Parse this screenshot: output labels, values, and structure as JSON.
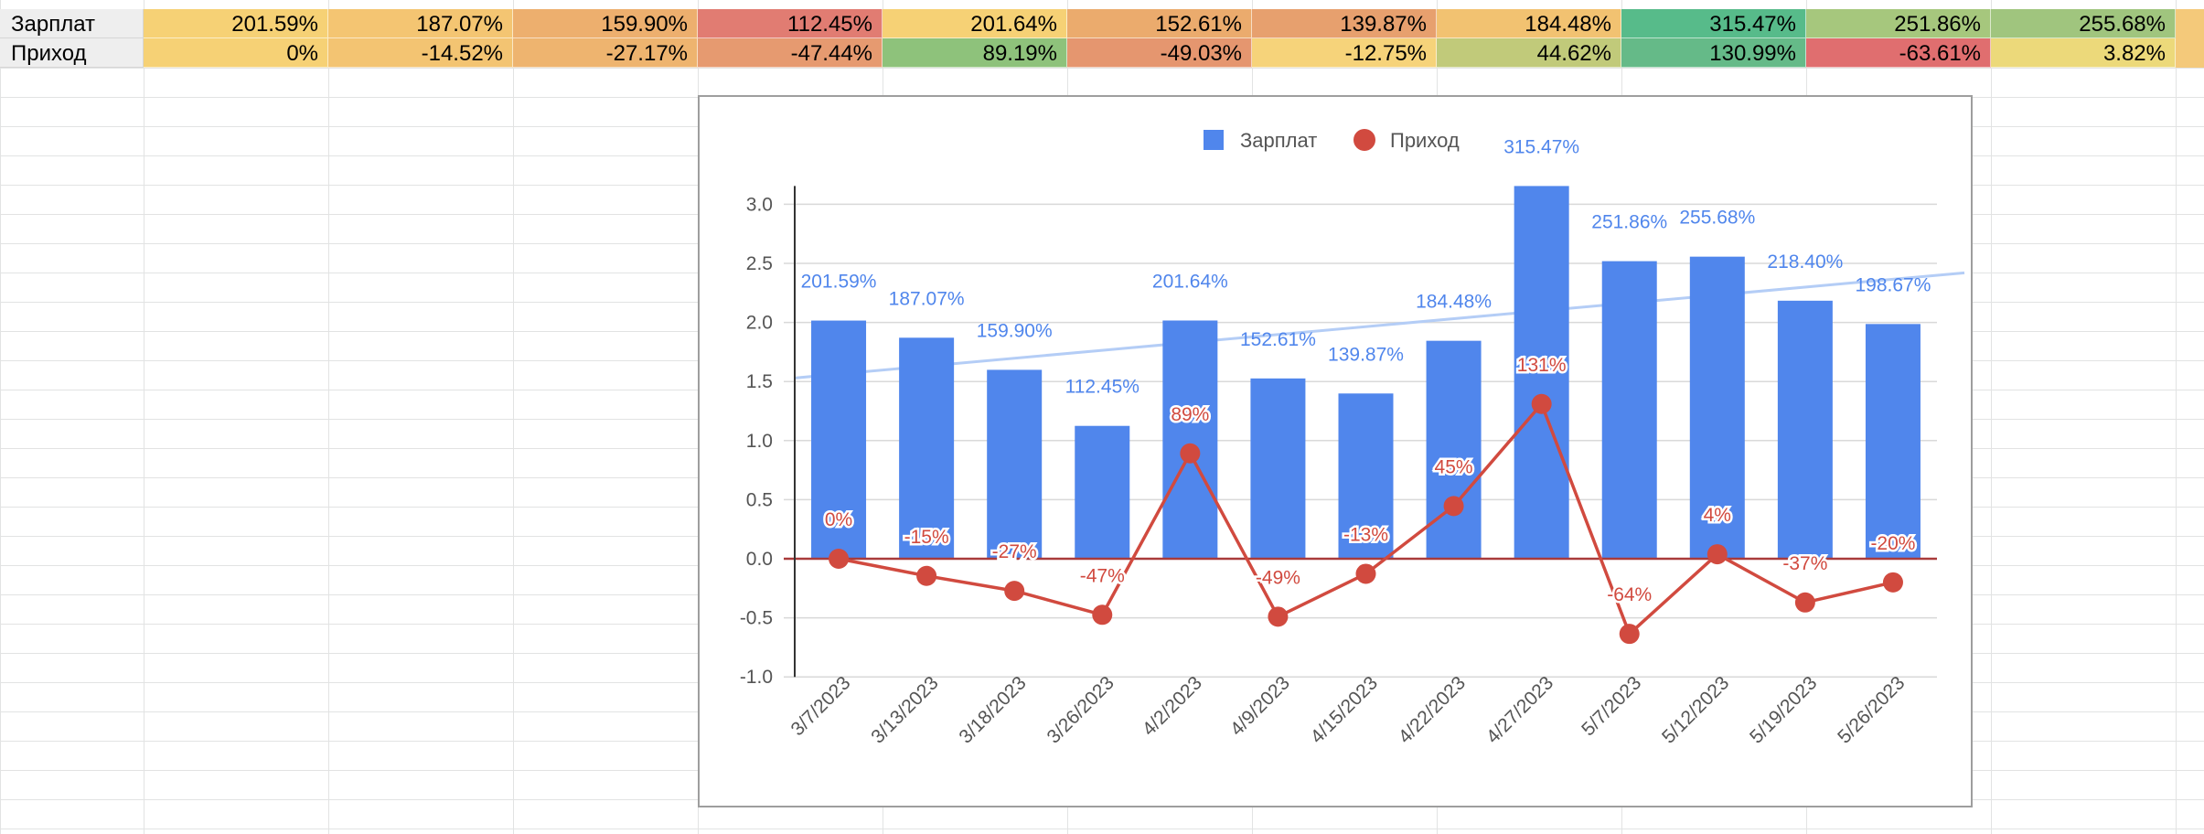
{
  "sheet": {
    "rows": [
      {
        "label": "Зарплат",
        "cells": [
          "201.59%",
          "187.07%",
          "159.90%",
          "112.45%",
          "201.64%",
          "152.61%",
          "139.87%",
          "184.48%",
          "315.47%",
          "251.86%",
          "255.68%"
        ],
        "colors": [
          "#f6d175",
          "#f4c572",
          "#edaf6e",
          "#e17c72",
          "#f6d175",
          "#ebab6d",
          "#e7a06e",
          "#f2c271",
          "#57bb8a",
          "#a6c77d",
          "#a0c57e"
        ]
      },
      {
        "label": "Приход",
        "cells": [
          "0%",
          "-14.52%",
          "-27.17%",
          "-47.44%",
          "89.19%",
          "-49.03%",
          "-12.75%",
          "44.62%",
          "130.99%",
          "-63.61%",
          "3.82%"
        ],
        "colors": [
          "#f6d175",
          "#f3c472",
          "#eeb46f",
          "#e69a70",
          "#8ec27b",
          "#e5966f",
          "#f6d37a",
          "#c1ca7a",
          "#65ba88",
          "#e06e6f",
          "#ecd97a"
        ]
      }
    ],
    "label_bg": "#eeeeee",
    "edge_color": "#f4c97a"
  },
  "chart_data": {
    "type": "bar",
    "categories": [
      "3/7/2023",
      "3/13/2023",
      "3/18/2023",
      "3/26/2023",
      "4/2/2023",
      "4/9/2023",
      "4/15/2023",
      "4/22/2023",
      "4/27/2023",
      "5/7/2023",
      "5/12/2023",
      "5/19/2023",
      "5/26/2023"
    ],
    "series": [
      {
        "name": "Зарплат",
        "type": "bar",
        "color": "#5086ec",
        "values": [
          2.0159,
          1.8707,
          1.599,
          1.1245,
          2.0164,
          1.5261,
          1.3987,
          1.8448,
          3.1547,
          2.5186,
          2.5568,
          2.184,
          1.9867
        ],
        "labels": [
          "201.59%",
          "187.07%",
          "159.90%",
          "112.45%",
          "201.64%",
          "152.61%",
          "139.87%",
          "184.48%",
          "315.47%",
          "251.86%",
          "255.68%",
          "218.40%",
          "198.67%"
        ]
      },
      {
        "name": "Приход",
        "type": "line",
        "color": "#d14a3f",
        "values": [
          0.0,
          -0.1452,
          -0.2717,
          -0.4744,
          0.8919,
          -0.4903,
          -0.1275,
          0.4462,
          1.3099,
          -0.6361,
          0.0382,
          -0.37,
          -0.2
        ],
        "labels": [
          "0%",
          "-15%",
          "-27%",
          "-47%",
          "89%",
          "-49%",
          "-13%",
          "45%",
          "131%",
          "-64%",
          "4%",
          "-37%",
          "-20%"
        ]
      }
    ],
    "trendline": {
      "series": "Зарплат",
      "color": "#b4cdf6",
      "start": 1.53,
      "end": 2.42
    },
    "ylim": [
      -1.0,
      3.0
    ],
    "yticks": [
      "-1.0",
      "-0.5",
      "0.0",
      "0.5",
      "1.0",
      "1.5",
      "2.0",
      "2.5",
      "3.0"
    ],
    "ytick_values": [
      -1.0,
      -0.5,
      0.0,
      0.5,
      1.0,
      1.5,
      2.0,
      2.5,
      3.0
    ],
    "legend_position": "top",
    "title": "",
    "xlabel": "",
    "ylabel": "",
    "grid": true
  }
}
